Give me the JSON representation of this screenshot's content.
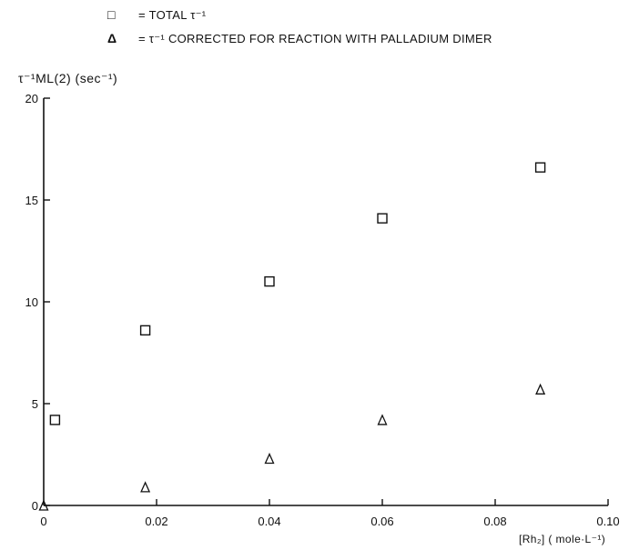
{
  "chart_data": {
    "type": "scatter",
    "legend": [
      {
        "marker": "□",
        "label": "= TOTAL  τ⁻¹"
      },
      {
        "marker": "Δ",
        "label": "= τ⁻¹ CORRECTED FOR REACTION WITH PALLADIUM DIMER"
      }
    ],
    "ylabel": "τ⁻¹ML(2) (sec⁻¹)",
    "xlabel": "[Rh₂] ( mole·L⁻¹)",
    "xlim": [
      0,
      0.1
    ],
    "ylim": [
      0,
      20
    ],
    "x_ticks": [
      "0",
      "0.02",
      "0.04",
      "0.06",
      "0.08",
      "0.10"
    ],
    "y_ticks": [
      "0",
      "5",
      "10",
      "15",
      "20"
    ],
    "series": [
      {
        "marker": "square",
        "points": [
          [
            0.002,
            4.2
          ],
          [
            0.018,
            8.6
          ],
          [
            0.04,
            11.0
          ],
          [
            0.06,
            14.1
          ],
          [
            0.088,
            16.6
          ]
        ]
      },
      {
        "marker": "triangle",
        "points": [
          [
            0.0,
            0.0
          ],
          [
            0.018,
            0.9
          ],
          [
            0.04,
            2.3
          ],
          [
            0.06,
            4.2
          ],
          [
            0.088,
            5.7
          ]
        ]
      }
    ],
    "grid": false
  }
}
